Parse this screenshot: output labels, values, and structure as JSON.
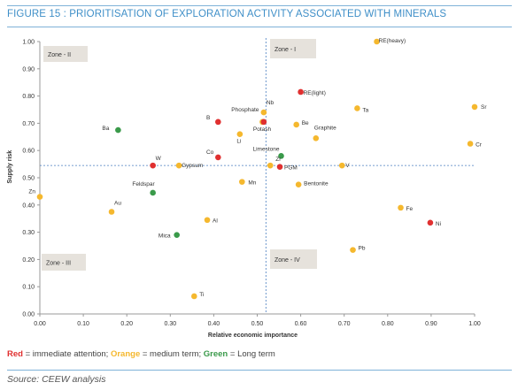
{
  "figure_title": "FIGURE 15 : PRIORITISATION OF EXPLORATION ACTIVITY ASSOCIATED WITH MINERALS",
  "legend": {
    "red_word": "Red",
    "red_text": " = immediate attention; ",
    "orange_word": "Orange",
    "orange_text": " = medium term; ",
    "green_word": "Green",
    "green_text": " = Long term"
  },
  "source": "Source: CEEW analysis",
  "colors": {
    "red": "#e03030",
    "orange": "#f5b82e",
    "green": "#3a9a4a",
    "divider": "#4a7ebf",
    "zone_bg": "#e6e2dc"
  },
  "chart_data": {
    "type": "scatter",
    "xlabel": "Relative economic importance",
    "ylabel": "Supply risk",
    "xlim": [
      0,
      1
    ],
    "ylim": [
      0,
      1
    ],
    "x_ticks": [
      "0.00",
      "0.10",
      "0.20",
      "0.30",
      "0.40",
      "0.50",
      "0.60",
      "0.70",
      "0.80",
      "0.90",
      "1.00"
    ],
    "y_ticks": [
      "0.00",
      "0.10",
      "0.20",
      "0.30",
      "0.40",
      "0.50",
      "0.60",
      "0.70",
      "0.80",
      "0.90",
      "1.00"
    ],
    "grid": false,
    "divider_x": 0.52,
    "divider_y": 0.545,
    "zones": [
      {
        "label": "Zone - I",
        "position": "top-right"
      },
      {
        "label": "Zone - II",
        "position": "top-left"
      },
      {
        "label": "Zone - III",
        "position": "bottom-left"
      },
      {
        "label": "Zone - IV",
        "position": "bottom-right"
      }
    ],
    "points": [
      {
        "label": "RE(heavy)",
        "x": 0.775,
        "y": 1.0,
        "color": "orange"
      },
      {
        "label": "RE(light)",
        "x": 0.6,
        "y": 0.815,
        "color": "red"
      },
      {
        "label": "Sr",
        "x": 1.0,
        "y": 0.76,
        "color": "orange"
      },
      {
        "label": "Ta",
        "x": 0.73,
        "y": 0.755,
        "color": "orange"
      },
      {
        "label": "Nb",
        "x": 0.515,
        "y": 0.74,
        "color": "orange"
      },
      {
        "label": "Phosphate",
        "x": 0.512,
        "y": 0.705,
        "color": "orange"
      },
      {
        "label": "Potash",
        "x": 0.515,
        "y": 0.705,
        "color": "red"
      },
      {
        "label": "Be",
        "x": 0.59,
        "y": 0.695,
        "color": "orange"
      },
      {
        "label": "B",
        "x": 0.41,
        "y": 0.705,
        "color": "red"
      },
      {
        "label": "Ba",
        "x": 0.18,
        "y": 0.675,
        "color": "green"
      },
      {
        "label": "Li",
        "x": 0.46,
        "y": 0.66,
        "color": "orange"
      },
      {
        "label": "Graphite",
        "x": 0.635,
        "y": 0.645,
        "color": "orange"
      },
      {
        "label": "Cr",
        "x": 0.99,
        "y": 0.625,
        "color": "orange"
      },
      {
        "label": "Limestone",
        "x": 0.555,
        "y": 0.58,
        "color": "green"
      },
      {
        "label": "Co",
        "x": 0.41,
        "y": 0.575,
        "color": "red"
      },
      {
        "label": "Zr",
        "x": 0.53,
        "y": 0.545,
        "color": "orange"
      },
      {
        "label": "PGM",
        "x": 0.552,
        "y": 0.54,
        "color": "red"
      },
      {
        "label": "V",
        "x": 0.695,
        "y": 0.545,
        "color": "orange"
      },
      {
        "label": "W",
        "x": 0.26,
        "y": 0.545,
        "color": "red"
      },
      {
        "label": "Gypsum",
        "x": 0.32,
        "y": 0.545,
        "color": "orange"
      },
      {
        "label": "Mn",
        "x": 0.465,
        "y": 0.485,
        "color": "orange"
      },
      {
        "label": "Bentonite",
        "x": 0.595,
        "y": 0.475,
        "color": "orange"
      },
      {
        "label": "Feldspar",
        "x": 0.26,
        "y": 0.445,
        "color": "green"
      },
      {
        "label": "Zn",
        "x": 0.0,
        "y": 0.43,
        "color": "orange"
      },
      {
        "label": "Fe",
        "x": 0.83,
        "y": 0.39,
        "color": "orange"
      },
      {
        "label": "Au",
        "x": 0.165,
        "y": 0.375,
        "color": "orange"
      },
      {
        "label": "Al",
        "x": 0.385,
        "y": 0.345,
        "color": "orange"
      },
      {
        "label": "Ni",
        "x": 0.898,
        "y": 0.335,
        "color": "red"
      },
      {
        "label": "Mica",
        "x": 0.315,
        "y": 0.29,
        "color": "green"
      },
      {
        "label": "Pb",
        "x": 0.72,
        "y": 0.235,
        "color": "orange"
      },
      {
        "label": "Ti",
        "x": 0.355,
        "y": 0.065,
        "color": "orange"
      }
    ]
  }
}
